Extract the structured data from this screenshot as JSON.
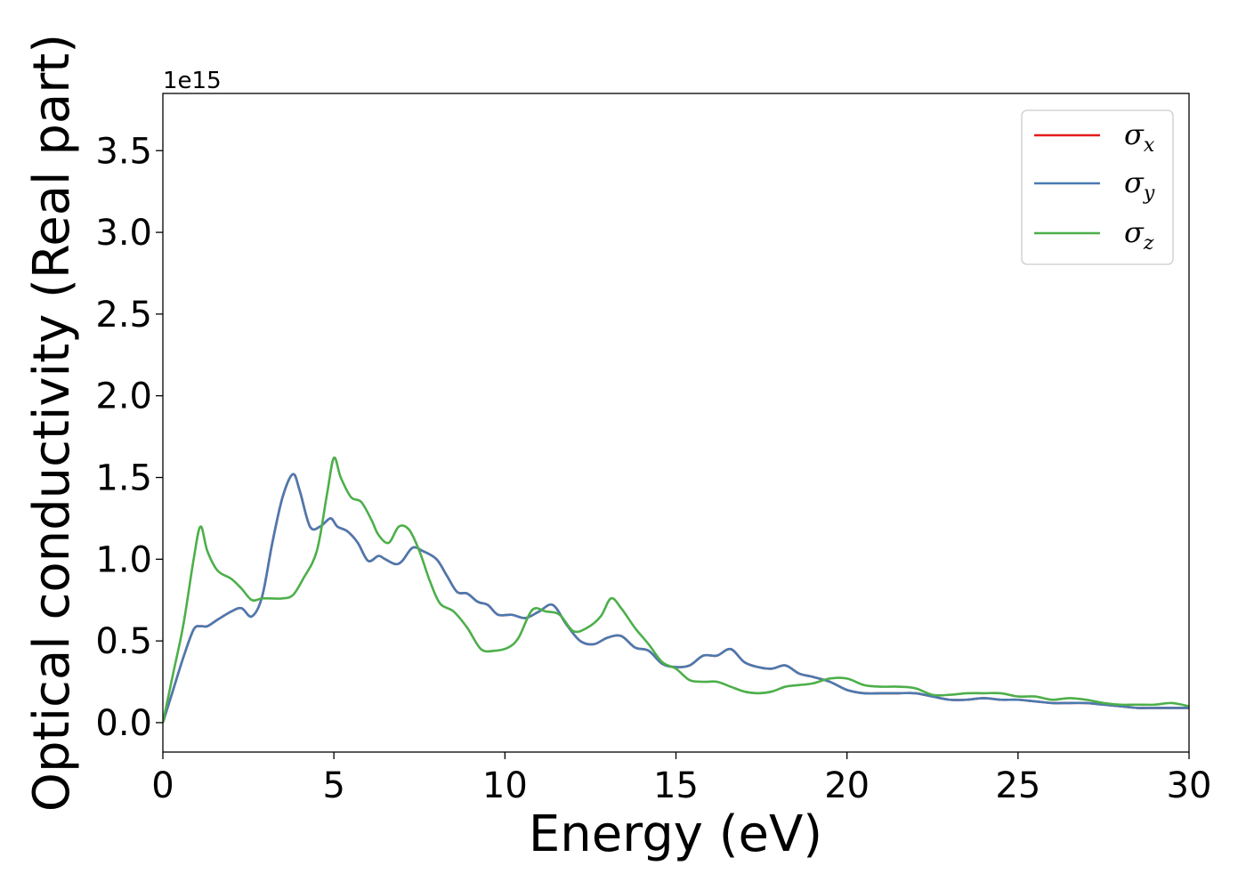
{
  "chart_data": {
    "type": "line",
    "xlabel": "Energy (eV)",
    "ylabel": "Optical conductivity (Real part)",
    "y_offset_label": "1e15",
    "xlim": [
      0,
      30
    ],
    "ylim": [
      -0.18,
      3.85
    ],
    "x_ticks": [
      0,
      5,
      10,
      15,
      20,
      25,
      30
    ],
    "x_tick_labels": [
      "0",
      "5",
      "10",
      "15",
      "20",
      "25",
      "30"
    ],
    "y_ticks": [
      0.0,
      0.5,
      1.0,
      1.5,
      2.0,
      2.5,
      3.0,
      3.5
    ],
    "y_tick_labels": [
      "0.0",
      "0.5",
      "1.0",
      "1.5",
      "2.0",
      "2.5",
      "3.0",
      "3.5"
    ],
    "grid": false,
    "legend_position": "top-right",
    "series": [
      {
        "name": "σx",
        "legend_symbol": "σ",
        "legend_sub": "x",
        "color": "#e41a1c",
        "x": [
          0,
          0.3,
          0.6,
          0.9,
          1.1,
          1.3,
          1.6,
          2.0,
          2.3,
          2.6,
          2.9,
          3.2,
          3.5,
          3.8,
          4.0,
          4.3,
          4.6,
          4.9,
          5.1,
          5.4,
          5.7,
          6.0,
          6.3,
          6.5,
          6.8,
          7.0,
          7.3,
          7.6,
          8.0,
          8.3,
          8.6,
          8.9,
          9.2,
          9.5,
          9.8,
          10.2,
          10.6,
          11.0,
          11.4,
          11.8,
          12.2,
          12.6,
          13.0,
          13.4,
          13.8,
          14.2,
          14.6,
          15.0,
          15.4,
          15.8,
          16.2,
          16.6,
          17.0,
          17.4,
          17.8,
          18.2,
          18.6,
          19.0,
          19.5,
          20.0,
          20.5,
          21.0,
          21.5,
          22.0,
          22.5,
          23.0,
          23.5,
          24.0,
          24.5,
          25.0,
          25.5,
          26.0,
          26.5,
          27.0,
          27.5,
          28.0,
          28.5,
          29.0,
          29.5,
          30.0
        ],
        "y": [
          0.0,
          0.2,
          0.4,
          0.57,
          0.59,
          0.59,
          0.63,
          0.68,
          0.7,
          0.65,
          0.77,
          1.1,
          1.38,
          1.52,
          1.42,
          1.2,
          1.2,
          1.25,
          1.2,
          1.17,
          1.1,
          0.99,
          1.02,
          1.0,
          0.97,
          0.99,
          1.07,
          1.05,
          1.0,
          0.9,
          0.8,
          0.79,
          0.74,
          0.72,
          0.66,
          0.66,
          0.64,
          0.68,
          0.72,
          0.6,
          0.5,
          0.48,
          0.52,
          0.53,
          0.46,
          0.44,
          0.36,
          0.34,
          0.35,
          0.41,
          0.41,
          0.45,
          0.37,
          0.34,
          0.33,
          0.35,
          0.3,
          0.28,
          0.25,
          0.2,
          0.18,
          0.18,
          0.18,
          0.18,
          0.16,
          0.14,
          0.14,
          0.15,
          0.14,
          0.14,
          0.13,
          0.12,
          0.12,
          0.12,
          0.11,
          0.1,
          0.09,
          0.09,
          0.09,
          0.09
        ]
      },
      {
        "name": "σy",
        "legend_symbol": "σ",
        "legend_sub": "y",
        "color": "#4a7ab0",
        "x": [
          0,
          0.3,
          0.6,
          0.9,
          1.1,
          1.3,
          1.6,
          2.0,
          2.3,
          2.6,
          2.9,
          3.2,
          3.5,
          3.8,
          4.0,
          4.3,
          4.6,
          4.9,
          5.1,
          5.4,
          5.7,
          6.0,
          6.3,
          6.5,
          6.8,
          7.0,
          7.3,
          7.6,
          8.0,
          8.3,
          8.6,
          8.9,
          9.2,
          9.5,
          9.8,
          10.2,
          10.6,
          11.0,
          11.4,
          11.8,
          12.2,
          12.6,
          13.0,
          13.4,
          13.8,
          14.2,
          14.6,
          15.0,
          15.4,
          15.8,
          16.2,
          16.6,
          17.0,
          17.4,
          17.8,
          18.2,
          18.6,
          19.0,
          19.5,
          20.0,
          20.5,
          21.0,
          21.5,
          22.0,
          22.5,
          23.0,
          23.5,
          24.0,
          24.5,
          25.0,
          25.5,
          26.0,
          26.5,
          27.0,
          27.5,
          28.0,
          28.5,
          29.0,
          29.5,
          30.0
        ],
        "y": [
          0.0,
          0.2,
          0.4,
          0.57,
          0.59,
          0.59,
          0.63,
          0.68,
          0.7,
          0.65,
          0.77,
          1.1,
          1.38,
          1.52,
          1.42,
          1.2,
          1.2,
          1.25,
          1.2,
          1.17,
          1.1,
          0.99,
          1.02,
          1.0,
          0.97,
          0.99,
          1.07,
          1.05,
          1.0,
          0.9,
          0.8,
          0.79,
          0.74,
          0.72,
          0.66,
          0.66,
          0.64,
          0.68,
          0.72,
          0.6,
          0.5,
          0.48,
          0.52,
          0.53,
          0.46,
          0.44,
          0.36,
          0.34,
          0.35,
          0.41,
          0.41,
          0.45,
          0.37,
          0.34,
          0.33,
          0.35,
          0.3,
          0.28,
          0.25,
          0.2,
          0.18,
          0.18,
          0.18,
          0.18,
          0.16,
          0.14,
          0.14,
          0.15,
          0.14,
          0.14,
          0.13,
          0.12,
          0.12,
          0.12,
          0.11,
          0.1,
          0.09,
          0.09,
          0.09,
          0.09
        ]
      },
      {
        "name": "σz",
        "legend_symbol": "σ",
        "legend_sub": "z",
        "color": "#4daf4a",
        "x": [
          0,
          0.3,
          0.6,
          0.9,
          1.1,
          1.3,
          1.6,
          2.0,
          2.3,
          2.6,
          2.9,
          3.2,
          3.5,
          3.8,
          4.1,
          4.5,
          4.8,
          5.0,
          5.2,
          5.5,
          5.8,
          6.1,
          6.3,
          6.6,
          6.9,
          7.2,
          7.5,
          7.8,
          8.1,
          8.5,
          8.9,
          9.3,
          9.7,
          10.1,
          10.4,
          10.8,
          11.2,
          11.6,
          12.0,
          12.4,
          12.8,
          13.1,
          13.4,
          13.8,
          14.2,
          14.6,
          15.0,
          15.4,
          15.8,
          16.2,
          16.6,
          17.0,
          17.4,
          17.8,
          18.2,
          18.6,
          19.0,
          19.5,
          20.0,
          20.5,
          21.0,
          21.5,
          22.0,
          22.5,
          23.0,
          23.5,
          24.0,
          24.5,
          25.0,
          25.5,
          26.0,
          26.5,
          27.0,
          27.5,
          28.0,
          28.5,
          29.0,
          29.5,
          30.0
        ],
        "y": [
          0.0,
          0.3,
          0.6,
          1.0,
          1.2,
          1.05,
          0.93,
          0.88,
          0.82,
          0.75,
          0.76,
          0.76,
          0.76,
          0.78,
          0.88,
          1.05,
          1.4,
          1.62,
          1.5,
          1.38,
          1.35,
          1.24,
          1.15,
          1.1,
          1.2,
          1.18,
          1.05,
          0.87,
          0.73,
          0.68,
          0.58,
          0.45,
          0.44,
          0.46,
          0.52,
          0.69,
          0.68,
          0.66,
          0.56,
          0.58,
          0.65,
          0.76,
          0.7,
          0.58,
          0.48,
          0.37,
          0.33,
          0.26,
          0.25,
          0.25,
          0.22,
          0.19,
          0.18,
          0.19,
          0.22,
          0.23,
          0.24,
          0.27,
          0.27,
          0.23,
          0.22,
          0.22,
          0.21,
          0.17,
          0.17,
          0.18,
          0.18,
          0.18,
          0.16,
          0.16,
          0.14,
          0.15,
          0.14,
          0.12,
          0.11,
          0.11,
          0.11,
          0.12,
          0.1
        ]
      }
    ]
  }
}
